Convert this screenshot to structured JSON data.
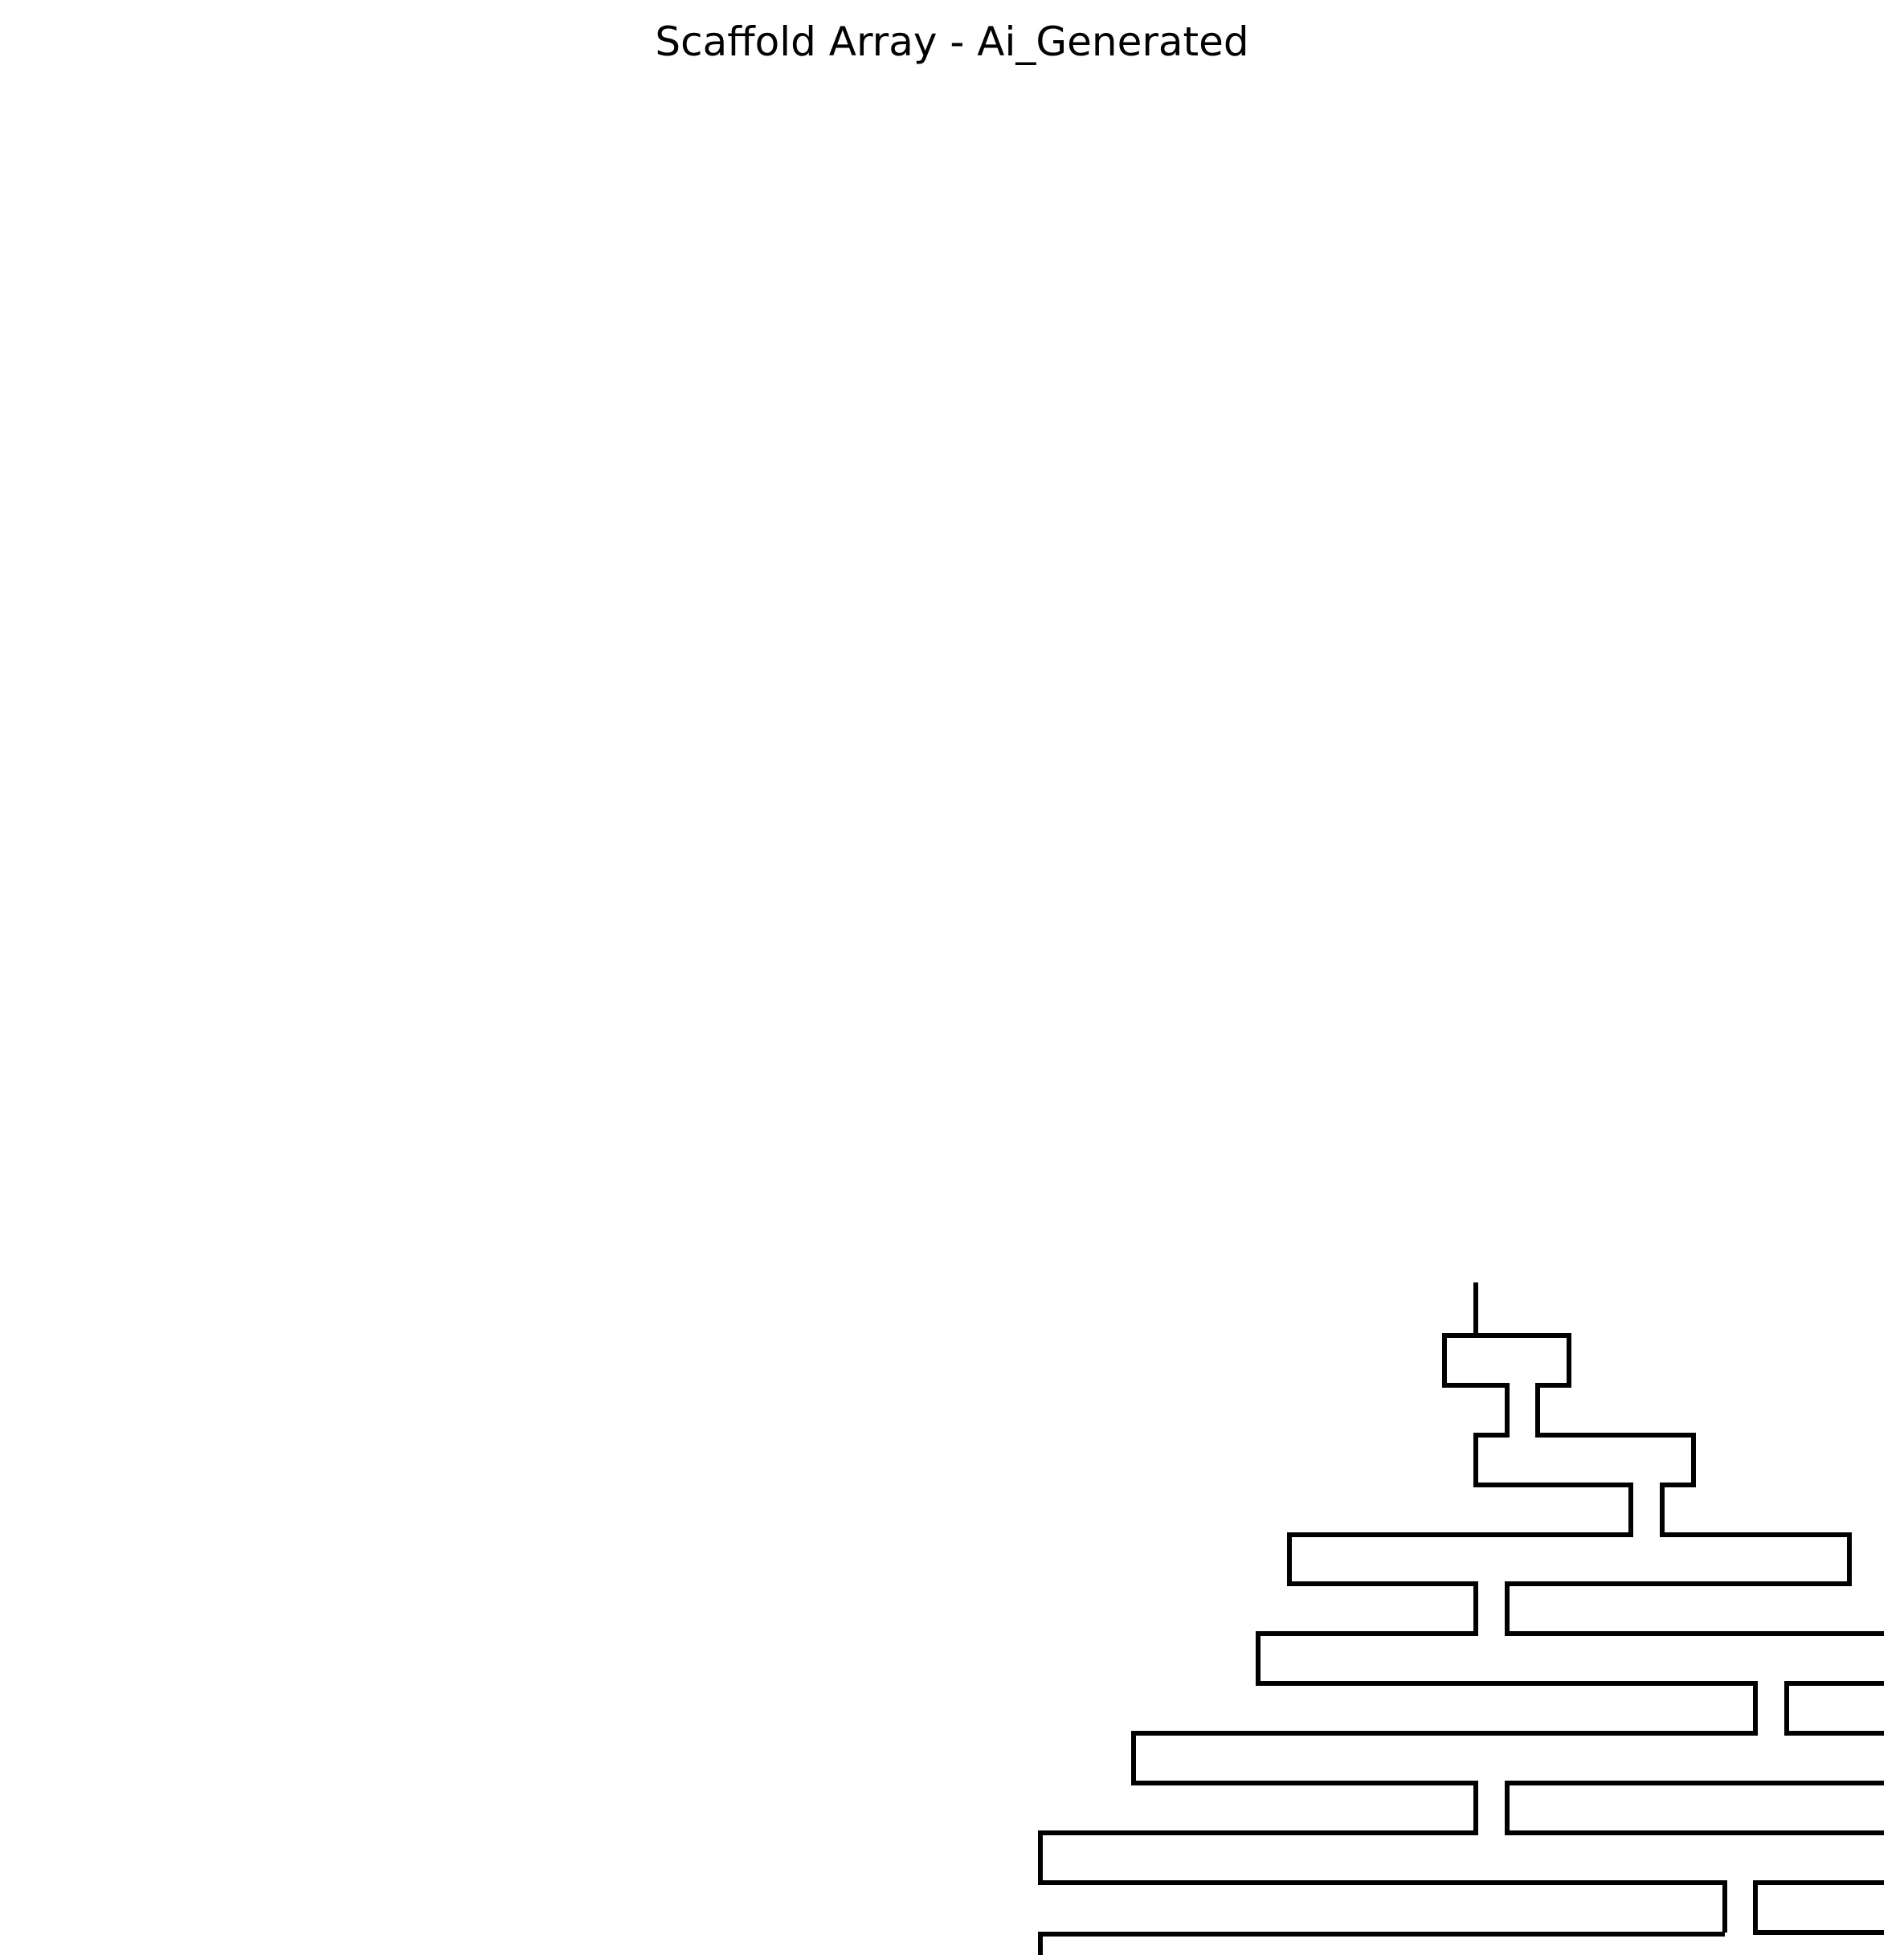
{
  "title": "Scaffold Array - Ai_Generated",
  "colors": {
    "stroke": "#000000",
    "background": "#ffffff"
  }
}
